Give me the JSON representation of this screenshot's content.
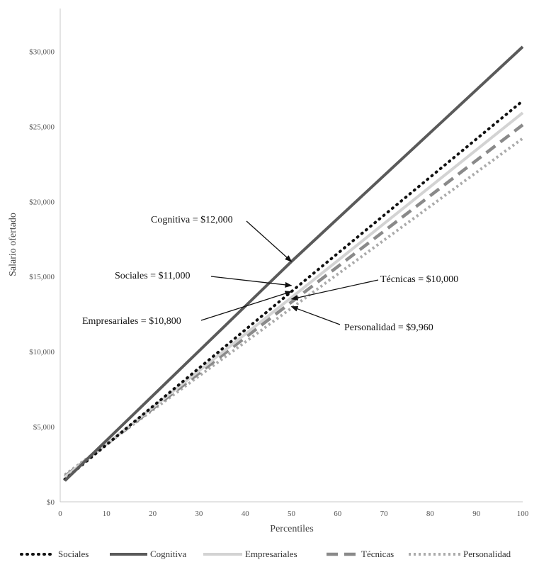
{
  "chart_data": {
    "type": "line",
    "title": "",
    "xlabel": "Percentiles",
    "ylabel": "Salario ofertado",
    "xlim": [
      0,
      100
    ],
    "ylim": [
      0,
      32000
    ],
    "x_ticks": [
      "0",
      "10",
      "20",
      "30",
      "40",
      "50",
      "60",
      "70",
      "80",
      "90",
      "100"
    ],
    "y_ticks": [
      "$0",
      "$5,000",
      "$10,000",
      "$15,000",
      "$20,000",
      "$25,000",
      "$30,000"
    ],
    "grid": false,
    "legend_position": "bottom",
    "series": [
      {
        "name": "Sociales",
        "style": "dotted",
        "color": "#111111",
        "x": [
          1,
          50,
          100
        ],
        "y": [
          1500,
          14000,
          26700
        ]
      },
      {
        "name": "Cognitiva",
        "style": "solid",
        "color": "#5a5a5a",
        "x": [
          1,
          50,
          100
        ],
        "y": [
          1400,
          16000,
          30300
        ]
      },
      {
        "name": "Empresariales",
        "style": "solid",
        "color": "#d3d3d3",
        "x": [
          1,
          50,
          100
        ],
        "y": [
          1650,
          13600,
          25900
        ]
      },
      {
        "name": "Técnicas",
        "style": "dashed",
        "color": "#8a8a8a",
        "x": [
          1,
          50,
          100
        ],
        "y": [
          1700,
          13300,
          25100
        ]
      },
      {
        "name": "Personalidad",
        "style": "dotted",
        "color": "#ababab",
        "x": [
          1,
          50,
          100
        ],
        "y": [
          1800,
          12900,
          24200
        ]
      }
    ],
    "annotations": [
      {
        "text": "Cognitiva = $12,000",
        "series": "Cognitiva",
        "target": [
          50,
          16000
        ]
      },
      {
        "text": "Sociales = $11,000",
        "series": "Sociales",
        "target": [
          50,
          14400
        ]
      },
      {
        "text": "Técnicas = $10,000",
        "series": "Técnicas",
        "target": [
          50,
          13500
        ]
      },
      {
        "text": "Empresariales = $10,800",
        "series": "Empresariales",
        "target": [
          50,
          14000
        ]
      },
      {
        "text": "Personalidad = $9,960",
        "series": "Personalidad",
        "target": [
          50,
          13000
        ]
      }
    ]
  }
}
